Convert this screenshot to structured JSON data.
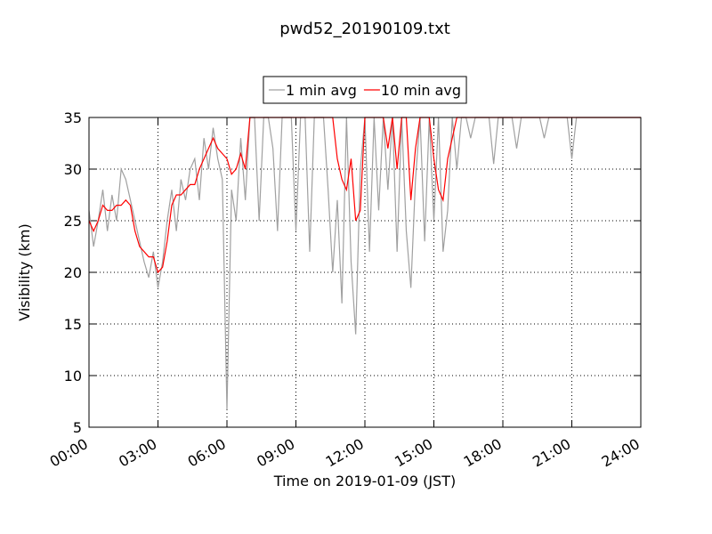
{
  "chart_data": {
    "type": "line",
    "title": "pwd52_20190109.txt",
    "xlabel": "Time on 2019-01-09 (JST)",
    "ylabel": "Visibility (km)",
    "x": [
      0,
      0.2,
      0.4,
      0.6,
      0.8,
      1,
      1.2,
      1.4,
      1.6,
      1.8,
      2,
      2.2,
      2.4,
      2.6,
      2.8,
      3,
      3.2,
      3.4,
      3.6,
      3.8,
      4,
      4.2,
      4.4,
      4.6,
      4.8,
      5,
      5.2,
      5.4,
      5.6,
      5.8,
      6,
      6.2,
      6.4,
      6.6,
      6.8,
      7,
      7.2,
      7.4,
      7.6,
      7.8,
      8,
      8.2,
      8.4,
      8.6,
      8.8,
      9,
      9.2,
      9.4,
      9.6,
      9.8,
      10,
      10.2,
      10.4,
      10.6,
      10.8,
      11,
      11.2,
      11.4,
      11.6,
      11.8,
      12,
      12.2,
      12.4,
      12.6,
      12.8,
      13,
      13.2,
      13.4,
      13.6,
      13.8,
      14,
      14.2,
      14.4,
      14.6,
      14.8,
      15,
      15.2,
      15.4,
      15.6,
      15.8,
      16,
      16.2,
      16.4,
      16.6,
      16.8,
      17,
      17.2,
      17.4,
      17.6,
      17.8,
      18,
      18.2,
      18.4,
      18.6,
      18.8,
      19,
      19.2,
      19.4,
      19.6,
      19.8,
      20,
      20.2,
      20.4,
      20.6,
      20.8,
      21,
      21.2,
      21.4,
      21.6,
      21.8,
      22,
      22.2,
      22.4,
      22.6,
      22.8,
      23,
      23.2,
      23.4,
      23.6,
      23.8,
      24
    ],
    "series": [
      {
        "name": "1 min avg",
        "color": "#a0a0a0",
        "values": [
          26,
          22.5,
          25,
          28,
          24,
          27.5,
          25,
          30,
          29,
          27,
          25,
          23,
          21,
          19.5,
          22,
          18.5,
          21,
          25,
          28,
          24,
          29,
          27,
          30,
          31,
          27,
          33,
          30,
          34,
          31,
          29,
          6.7,
          28,
          25,
          33,
          27,
          35,
          35,
          25,
          35,
          35,
          32,
          24,
          35,
          35,
          35,
          24,
          35,
          35,
          22,
          35,
          35,
          35,
          28,
          20,
          27,
          17,
          35,
          21,
          14,
          30,
          35,
          22,
          35,
          26,
          35,
          28,
          35,
          22,
          35,
          24,
          18.5,
          29,
          35,
          23,
          35,
          25,
          35,
          22,
          26,
          35,
          30,
          35,
          35,
          33,
          35,
          35,
          35,
          35,
          30.5,
          35,
          35,
          35,
          35,
          32,
          35,
          35,
          35,
          35,
          35,
          33,
          35,
          35,
          35,
          35,
          35,
          31,
          35,
          35,
          35,
          35,
          35,
          35,
          35,
          35,
          35,
          35,
          35,
          35,
          35,
          35,
          35
        ]
      },
      {
        "name": "10 min avg",
        "color": "#ff0000",
        "values": [
          25,
          24,
          25,
          26.5,
          26,
          26,
          26.5,
          26.5,
          27,
          26.5,
          24,
          22.5,
          22,
          21.5,
          21.5,
          20,
          20.5,
          23,
          26.5,
          27.5,
          27.5,
          28,
          28.5,
          28.5,
          30,
          31,
          32,
          33,
          32,
          31.5,
          31,
          29.5,
          30,
          31.5,
          30,
          35,
          35,
          35,
          35,
          35,
          35,
          35,
          35,
          35,
          35,
          35,
          35,
          35,
          35,
          35,
          35,
          35,
          35,
          35,
          31,
          29,
          28,
          31,
          25,
          26,
          35,
          35,
          35,
          35,
          35,
          32,
          35,
          30,
          35,
          35,
          27,
          32,
          35,
          35,
          35,
          31,
          28,
          27,
          31,
          33,
          35,
          35,
          35,
          35,
          35,
          35,
          35,
          35,
          35,
          35,
          35,
          35,
          35,
          35,
          35,
          35,
          35,
          35,
          35,
          35,
          35,
          35,
          35,
          35,
          35,
          35,
          35,
          35,
          35,
          35,
          35,
          35,
          35,
          35,
          35,
          35,
          35,
          35,
          35,
          35,
          35
        ]
      }
    ],
    "xlim": [
      0,
      24
    ],
    "xticks": [
      {
        "value": 0,
        "label": "00:00"
      },
      {
        "value": 3,
        "label": "03:00"
      },
      {
        "value": 6,
        "label": "06:00"
      },
      {
        "value": 9,
        "label": "09:00"
      },
      {
        "value": 12,
        "label": "12:00"
      },
      {
        "value": 15,
        "label": "15:00"
      },
      {
        "value": 18,
        "label": "18:00"
      },
      {
        "value": 21,
        "label": "21:00"
      },
      {
        "value": 24,
        "label": "24:00"
      }
    ],
    "ylim": [
      5,
      35
    ],
    "yticks": [
      5,
      10,
      15,
      20,
      25,
      30,
      35
    ],
    "grid": true,
    "legend": "top"
  }
}
